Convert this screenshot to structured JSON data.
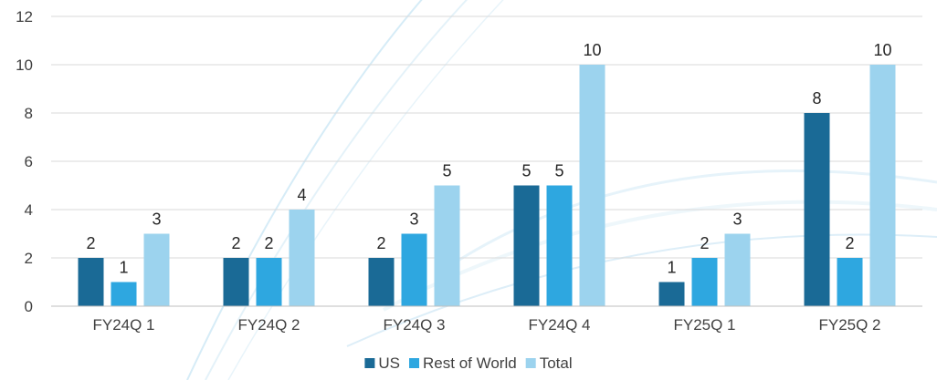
{
  "chart_data": {
    "type": "bar",
    "categories": [
      "FY24Q 1",
      "FY24Q 2",
      "FY24Q 3",
      "FY24Q 4",
      "FY25Q 1",
      "FY25Q 2"
    ],
    "series": [
      {
        "name": "US",
        "values": [
          2,
          2,
          2,
          5,
          1,
          8
        ],
        "color": "#1a6a96"
      },
      {
        "name": "Rest of World",
        "values": [
          1,
          2,
          3,
          5,
          2,
          2
        ],
        "color": "#2ea7e0"
      },
      {
        "name": "Total",
        "values": [
          3,
          4,
          5,
          10,
          3,
          10
        ],
        "color": "#9cd3ee"
      }
    ],
    "y_ticks": [
      "0",
      "2",
      "4",
      "6",
      "8",
      "10",
      "12"
    ],
    "ylim": [
      0,
      12
    ],
    "grid": true,
    "legend_position": "bottom",
    "data_labels": true
  }
}
